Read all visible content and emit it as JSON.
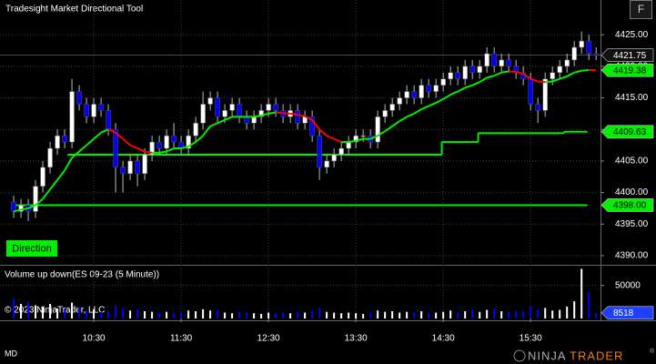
{
  "chart_data": {
    "type": "candlestick",
    "title": "Tradesight Market Directional Tool",
    "direction_label": "Direction",
    "xlim": [
      565.6,
      978
    ],
    "xticks": [
      {
        "value": 630,
        "label": "10:30"
      },
      {
        "value": 690,
        "label": "11:30"
      },
      {
        "value": 750,
        "label": "12:30"
      },
      {
        "value": 810,
        "label": "13:30"
      },
      {
        "value": 870,
        "label": "14:30"
      },
      {
        "value": 930,
        "label": "15:30"
      }
    ],
    "ylim": [
      4388.7,
      4430.5
    ],
    "yticks": [
      {
        "value": 4390,
        "label": "4390.00"
      },
      {
        "value": 4395,
        "label": "4395.00"
      },
      {
        "value": 4400,
        "label": "4400.00"
      },
      {
        "value": 4405,
        "label": "4405.00"
      },
      {
        "value": 4410,
        "label": "4410.00"
      },
      {
        "value": 4415,
        "label": "4415.00"
      },
      {
        "value": 4420,
        "label": "4420.00"
      },
      {
        "value": 4425,
        "label": "4425.00"
      }
    ],
    "grid": true,
    "up_color": "#ffffff",
    "down_color": "#0000ff",
    "x": [
      575,
      580,
      585,
      590,
      595,
      600,
      605,
      610,
      615,
      620,
      625,
      630,
      635,
      640,
      645,
      650,
      655,
      660,
      665,
      670,
      675,
      680,
      685,
      690,
      695,
      700,
      705,
      710,
      715,
      720,
      725,
      730,
      735,
      740,
      745,
      750,
      755,
      760,
      765,
      770,
      775,
      780,
      785,
      790,
      795,
      800,
      805,
      810,
      815,
      820,
      825,
      830,
      835,
      840,
      845,
      850,
      855,
      860,
      865,
      870,
      875,
      880,
      885,
      890,
      895,
      900,
      905,
      910,
      915,
      920,
      925,
      930,
      935,
      940,
      945,
      950,
      955,
      960,
      965,
      970,
      975
    ],
    "open": [
      4398.5,
      4397,
      4398,
      4397,
      4401,
      4404,
      4407,
      4409,
      4408,
      4416,
      4414,
      4412,
      4414,
      4413,
      4410,
      4404,
      4403,
      4405,
      4403,
      4406,
      4408,
      4407,
      4409,
      4408,
      4407,
      4409,
      4411,
      4414,
      4415,
      4412,
      4413,
      4414,
      4412,
      4411,
      4412,
      4413,
      4414,
      4413,
      4412,
      4413,
      4411,
      4412,
      4409,
      4404,
      4405,
      4406,
      4407,
      4408,
      4409,
      4409,
      4408,
      4412,
      4413,
      4414,
      4415,
      4416,
      4415,
      4417,
      4416,
      4417,
      4418,
      4419,
      4418,
      4420,
      4419,
      4420,
      4422,
      4420,
      4421,
      4420,
      4419,
      4418,
      4414,
      4413,
      4418,
      4419,
      4420,
      4421,
      4423,
      4424,
      4422
    ],
    "high": [
      4399.5,
      4399,
      4399,
      4402,
      4405,
      4408,
      4410,
      4410,
      4418,
      4417,
      4415,
      4415,
      4415,
      4414,
      4411,
      4405,
      4406,
      4406,
      4407,
      4409,
      4409,
      4410,
      4411,
      4409,
      4410,
      4412,
      4416,
      4416,
      4416,
      4414,
      4415,
      4415,
      4413,
      4413,
      4414,
      4415,
      4415,
      4414,
      4414,
      4414,
      4413,
      4413,
      4410,
      4406,
      4407,
      4408,
      4409,
      4410,
      4410,
      4410,
      4413,
      4414,
      4415,
      4416,
      4417,
      4417,
      4418,
      4418,
      4418,
      4419,
      4420,
      4420,
      4421,
      4421,
      4421,
      4423,
      4423,
      4422,
      4422,
      4421,
      4420,
      4419,
      4415,
      4419,
      4420,
      4421,
      4422,
      4424,
      4425.5,
      4425,
      4423
    ],
    "low": [
      4396,
      4396,
      4395.5,
      4396,
      4400,
      4403,
      4406,
      4407,
      4407,
      4413,
      4411,
      4411,
      4412,
      4409,
      4400,
      4400,
      4402,
      4401,
      4402,
      4405,
      4406,
      4406,
      4407,
      4406,
      4406,
      4408,
      4410,
      4413,
      4411,
      4411,
      4412,
      4411,
      4410,
      4410,
      4411,
      4412,
      4412,
      4411,
      4411,
      4410,
      4410,
      4408,
      4402,
      4403,
      4404,
      4405,
      4406,
      4407,
      4408,
      4407,
      4407,
      4411,
      4412,
      4413,
      4414,
      4414,
      4414,
      4415,
      4415,
      4416,
      4417,
      4417,
      4417,
      4418,
      4418,
      4419,
      4419,
      4419,
      4419,
      4418,
      4417,
      4413,
      4411,
      4412,
      4417,
      4418,
      4419,
      4420,
      4422,
      4421,
      4421
    ],
    "close": [
      4397,
      4398,
      4397,
      4401,
      4404,
      4407,
      4409,
      4408,
      4416,
      4414,
      4412,
      4414,
      4413,
      4410,
      4404,
      4403,
      4405,
      4403,
      4406,
      4408,
      4407,
      4409,
      4408,
      4407,
      4409,
      4411,
      4414,
      4415,
      4412,
      4413,
      4414,
      4412,
      4411,
      4412,
      4413,
      4414,
      4413,
      4412,
      4413,
      4411,
      4412,
      4409,
      4404,
      4405,
      4406,
      4407,
      4408,
      4409,
      4409,
      4408,
      4412,
      4413,
      4414,
      4415,
      4416,
      4415,
      4417,
      4416,
      4417,
      4418,
      4419,
      4418,
      4420,
      4419,
      4420,
      4422,
      4420,
      4421,
      4420,
      4419,
      4418,
      4414,
      4413,
      4418,
      4419,
      4420,
      4421,
      4423,
      4424,
      4422,
      4421.75
    ],
    "trend": [
      4397,
      4397.3,
      4397.5,
      4398,
      4399,
      4400.5,
      4402,
      4403.5,
      4405.5,
      4406.5,
      4407.5,
      4408.5,
      4409.5,
      4410,
      4409.5,
      4408.5,
      4407.5,
      4407,
      4406.5,
      4406.3,
      4406.3,
      4406.5,
      4407,
      4407,
      4407.3,
      4408,
      4409,
      4410.5,
      4411,
      4411.5,
      4412,
      4412,
      4412,
      4412,
      4412.2,
      4412.5,
      4412.7,
      4412.6,
      4412.5,
      4412.3,
      4412.1,
      4411.5,
      4410,
      4409,
      4408.5,
      4408,
      4408,
      4408.2,
      4408.5,
      4408.5,
      4409,
      4409.7,
      4410.5,
      4411.3,
      4412,
      4412.5,
      4413.2,
      4413.7,
      4414.2,
      4414.8,
      4415.5,
      4416,
      4416.6,
      4417,
      4417.5,
      4418.2,
      4418.5,
      4419,
      4419.2,
      4419.1,
      4418.8,
      4418,
      4417.6,
      4417.5,
      4417.6,
      4418,
      4418.4,
      4419,
      4419.3,
      4419.4,
      4419.38
    ],
    "trend_up_color": "#00ee00",
    "trend_down_color": "#ff0000",
    "support": {
      "x": [
        612,
        869,
        894,
        953,
        969
      ],
      "values": [
        4406,
        4408,
        4409.4,
        4409.63,
        4409.63
      ],
      "color": "#00ee00"
    },
    "price_markers": [
      {
        "value": 4421.75,
        "color": "#111111",
        "text_color": "#ffffff"
      },
      {
        "value": 4419.38,
        "color": "#00ee00",
        "text_color": "#000000"
      },
      {
        "value": 4409.63,
        "color": "#00ee00",
        "text_color": "#000000"
      },
      {
        "value": 4398,
        "label": "4398.00",
        "color": "#00ee00",
        "text_color": "#000000"
      }
    ],
    "volume": {
      "title": "Volume up down(ES 09-23 (5 Minute))",
      "ylim": [
        0,
        77000
      ],
      "yticks": [
        50000
      ],
      "values": [
        30000,
        22000,
        25000,
        20000,
        18000,
        22000,
        15000,
        14000,
        24000,
        17000,
        12000,
        14000,
        10000,
        11000,
        20000,
        16000,
        12000,
        14000,
        11000,
        10000,
        9000,
        10000,
        8000,
        9000,
        12000,
        11000,
        14000,
        12000,
        13000,
        9000,
        8000,
        10000,
        9000,
        8000,
        7000,
        9000,
        8000,
        9000,
        8000,
        10000,
        9000,
        12000,
        16000,
        10000,
        9000,
        8000,
        9000,
        8000,
        7000,
        9000,
        12000,
        10000,
        11000,
        9000,
        10000,
        9000,
        11000,
        8000,
        9000,
        10000,
        12000,
        9000,
        11000,
        14000,
        10000,
        13000,
        15000,
        11000,
        10000,
        12000,
        11000,
        18000,
        14000,
        16000,
        12000,
        13000,
        18000,
        26000,
        75000,
        40000,
        8518
      ],
      "marker_color": "#1f3fff"
    },
    "copyright": "© 2023 NinjaTrader, LLC"
  },
  "toolbar": {
    "button": "F"
  },
  "footer": {
    "status": "MD",
    "logo_left": "NINJA",
    "logo_right": "TRADER",
    "logo_mark": "®"
  }
}
